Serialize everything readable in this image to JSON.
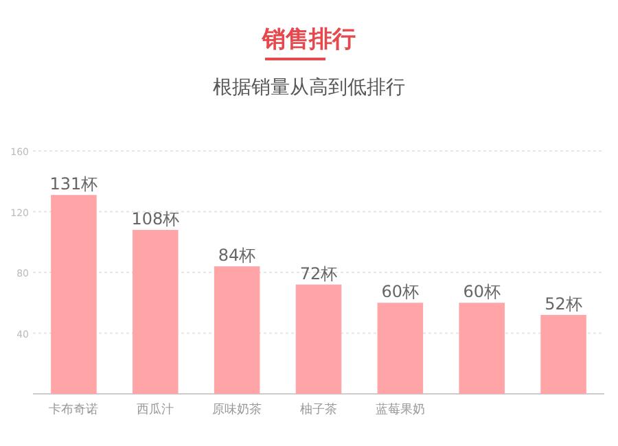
{
  "chart_data": {
    "type": "bar",
    "title": "销售排行",
    "subtitle": "根据销量从高到低排行",
    "categories": [
      "卡布奇诺",
      "西瓜汁",
      "原味奶茶",
      "柚子茶",
      "蓝莓果奶",
      null,
      null
    ],
    "values": [
      131,
      108,
      84,
      72,
      60,
      60,
      52
    ],
    "value_labels": [
      "131杯",
      "108杯",
      "84杯",
      "72杯",
      "60杯",
      "60杯",
      "52杯"
    ],
    "color": "#ffa5a8",
    "ylim": [
      0,
      160
    ],
    "yticks": [
      40,
      80,
      120,
      160
    ],
    "grid": "y"
  }
}
